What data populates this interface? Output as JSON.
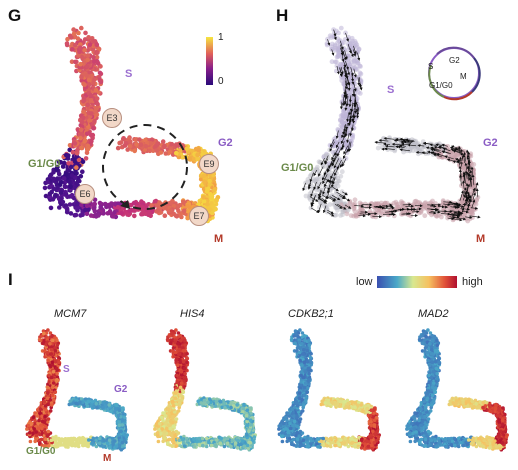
{
  "panels": {
    "G": {
      "letter": "G",
      "labels": {
        "s": "S",
        "g2": "G2",
        "g1g0": "G1/G0",
        "m": "M"
      },
      "colorbar": {
        "max": "1",
        "min": "0"
      },
      "nodes": [
        "E3",
        "E9",
        "E6",
        "E7"
      ],
      "colors": {
        "low": "#3b0f8a",
        "mid": "#c2307a",
        "high": "#f6e03a"
      }
    },
    "H": {
      "letter": "H",
      "labels": {
        "s": "S",
        "g2": "G2",
        "g1g0": "G1/G0",
        "m": "M"
      },
      "cycle_legend": {
        "g2": "G2",
        "s": "S",
        "m": "M",
        "g1g0": "G1/G0"
      }
    },
    "I": {
      "letter": "I",
      "colorbar": {
        "low": "low",
        "high": "high"
      },
      "genes": [
        "MCM7",
        "HIS4",
        "CDKB2;1",
        "MAD2"
      ],
      "labels": {
        "s": "S",
        "g2": "G2",
        "g1g0": "G1/G0",
        "m": "M"
      }
    }
  },
  "label_colors": {
    "s": "#9b6fd0",
    "g2": "#8a5cc4",
    "g1g0": "#6b8a4a",
    "m": "#b33a2a"
  }
}
